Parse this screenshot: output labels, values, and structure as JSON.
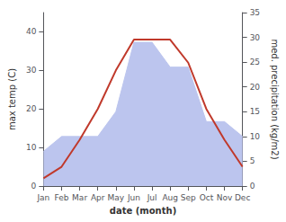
{
  "chart_data": {
    "type": "line",
    "categories": [
      "Jan",
      "Feb",
      "Mar",
      "Apr",
      "May",
      "Jun",
      "Jul",
      "Aug",
      "Sep",
      "Oct",
      "Nov",
      "Dec"
    ],
    "xlabel": "date (month)",
    "ylabel": "max temp (C)",
    "y2label": "med. precipitation (kg/m2)",
    "series": [
      {
        "type": "area",
        "axis": "y2",
        "color": "#bcc5ee",
        "values": [
          7,
          10,
          10,
          10,
          15,
          29,
          29,
          24,
          24,
          13,
          13,
          10
        ]
      },
      {
        "type": "line",
        "color": "#c0392b",
        "values": [
          2,
          5,
          12,
          20,
          30,
          38,
          38,
          38,
          32,
          20,
          12,
          5
        ]
      }
    ],
    "ylim": [
      0,
      45
    ],
    "yticks": [
      0,
      10,
      20,
      30,
      40
    ],
    "y2lim": [
      0,
      35
    ],
    "y2ticks": [
      0,
      5,
      10,
      15,
      20,
      25,
      30,
      35
    ],
    "grid": false
  }
}
